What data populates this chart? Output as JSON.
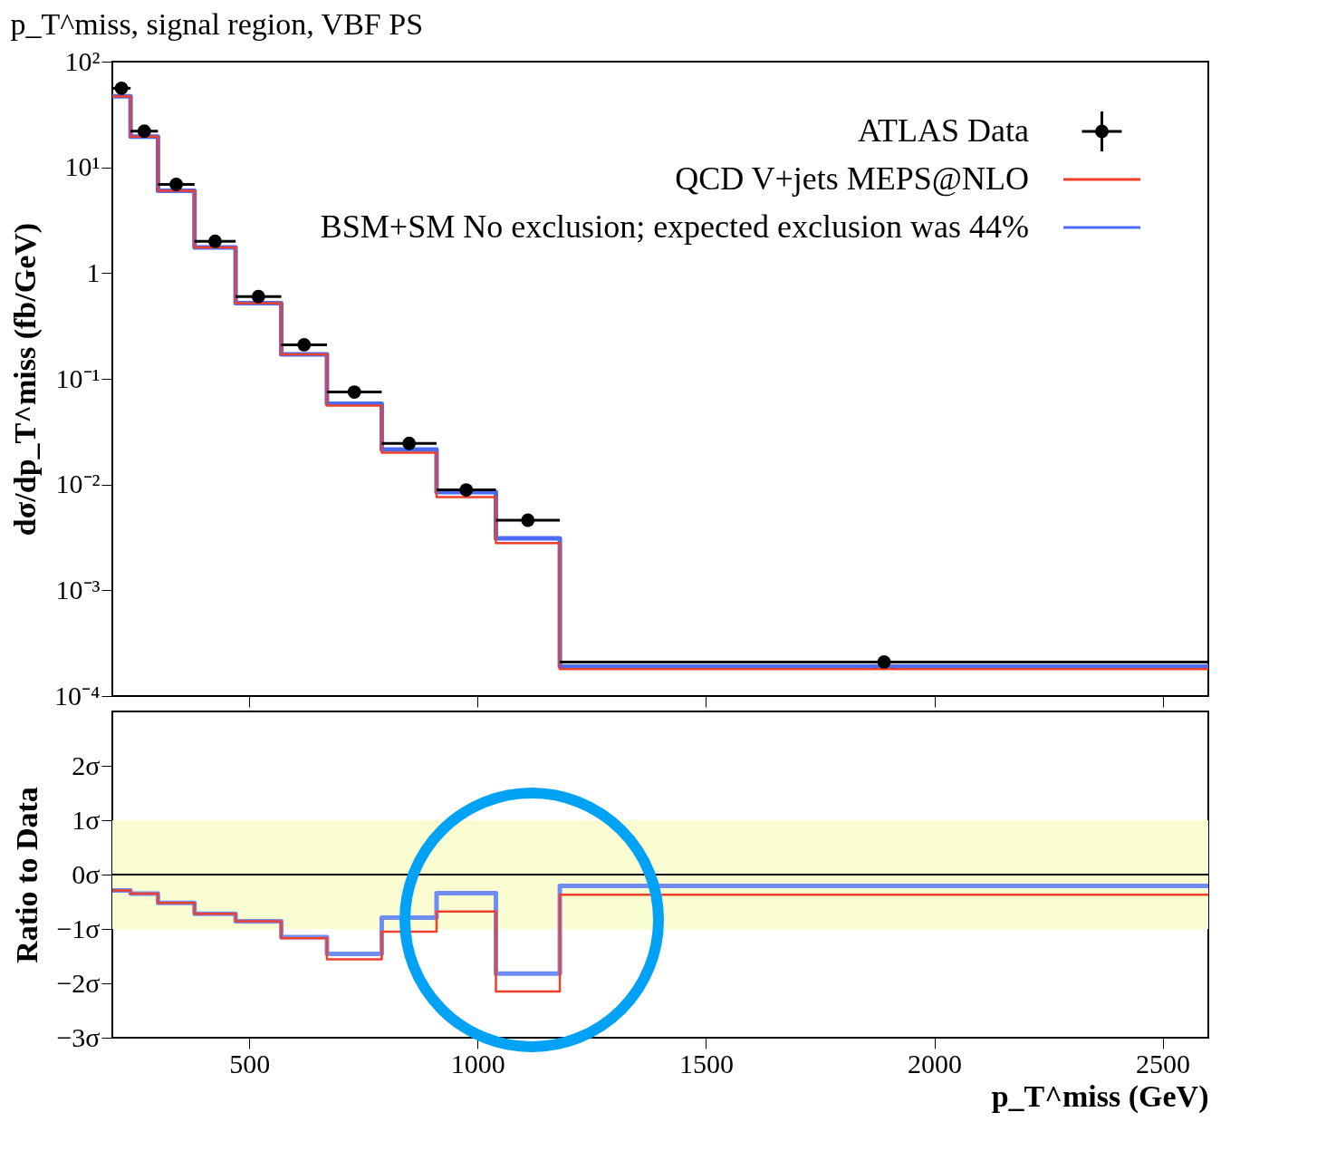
{
  "chart_data": [
    {
      "type": "step",
      "title": "p_T^miss, signal region, VBF PS",
      "ylabel": "dσ/dp_T^miss (fb/GeV)",
      "xlim": [
        200,
        2600
      ],
      "xticks": [
        500,
        1000,
        1500,
        2000,
        2500
      ],
      "ylim": [
        0.0001,
        100
      ],
      "yticks": [
        {
          "value": 100,
          "label": "10²"
        },
        {
          "value": 10,
          "label": "10¹"
        },
        1,
        {
          "value": 0.1,
          "label": "10⁻¹"
        },
        {
          "value": 0.01,
          "label": "10⁻²"
        },
        {
          "value": 0.001,
          "label": "10⁻³"
        },
        {
          "value": 0.0001,
          "label": "10⁻⁴"
        }
      ],
      "log": true,
      "tick_labels": "y",
      "legend": "top right",
      "grid": false,
      "line_style": "solid",
      "series": [
        {
          "name": "ATLAS Data",
          "type": "scatter",
          "marker": "circle",
          "color": "#000000",
          "x": [
            220,
            270,
            340,
            425,
            520,
            620,
            730,
            850,
            975,
            1110,
            1890
          ],
          "values": [
            56,
            22,
            6.9,
            2.0,
            0.6,
            0.21,
            0.075,
            0.0245,
            0.0089,
            0.0046,
            0.00021
          ],
          "xerrors": [
            20,
            30,
            40,
            45,
            50,
            50,
            60,
            60,
            65,
            70,
            710
          ]
        },
        {
          "name": "QCD V+jets MEPS@NLO",
          "color": "#f0402a",
          "x": [
            200,
            240,
            300,
            380,
            470,
            570,
            670,
            790,
            910,
            1040,
            1180
          ],
          "values": [
            47,
            19.5,
            6.0,
            1.75,
            0.52,
            0.17,
            0.056,
            0.02,
            0.0076,
            0.0028,
            0.00018
          ]
        },
        {
          "name": "BSM+SM No exclusion; expected exclusion was 44%",
          "color": "#4a6cf5",
          "x": [
            200,
            240,
            300,
            380,
            470,
            570,
            670,
            790,
            910,
            1040,
            1180
          ],
          "values": [
            47,
            19.5,
            6.0,
            1.75,
            0.52,
            0.17,
            0.058,
            0.0214,
            0.0085,
            0.0031,
            0.00019
          ]
        }
      ]
    },
    {
      "type": "step",
      "xlabel": "p_T^miss (GeV)",
      "ylabel": "Ratio to Data",
      "xlim": [
        200,
        2600
      ],
      "xticks": [
        500,
        1000,
        1500,
        2000,
        2500
      ],
      "ylim": [
        -3,
        3
      ],
      "yticks": [
        {
          "value": 2,
          "label": "2σ"
        },
        {
          "value": 1,
          "label": "1σ"
        },
        {
          "value": 0,
          "label": "0σ"
        },
        {
          "value": -1,
          "label": "−1σ"
        },
        {
          "value": -2,
          "label": "−2σ"
        },
        {
          "value": -3,
          "label": "−3σ"
        }
      ],
      "grid": false,
      "line_style": "solid",
      "bands": [
        {
          "axis": "y",
          "from": -1,
          "to": 1,
          "color": "#fafcd2"
        }
      ],
      "ref_lines": [
        {
          "axis": "y",
          "value": 0,
          "color": "#000000"
        }
      ],
      "series": [
        {
          "color": "#f0402a",
          "x": [
            200,
            240,
            300,
            380,
            470,
            570,
            670,
            790,
            910,
            1040,
            1180
          ],
          "values": [
            -0.29,
            -0.35,
            -0.52,
            -0.72,
            -0.86,
            -1.17,
            -1.56,
            -1.05,
            -0.68,
            -2.15,
            -0.37
          ]
        },
        {
          "color": "#6f8ef5",
          "x": [
            200,
            240,
            300,
            380,
            470,
            570,
            670,
            790,
            910,
            1040,
            1180
          ],
          "values": [
            -0.29,
            -0.35,
            -0.52,
            -0.72,
            -0.86,
            -1.15,
            -1.46,
            -0.79,
            -0.34,
            -1.82,
            -0.21
          ]
        }
      ]
    }
  ]
}
